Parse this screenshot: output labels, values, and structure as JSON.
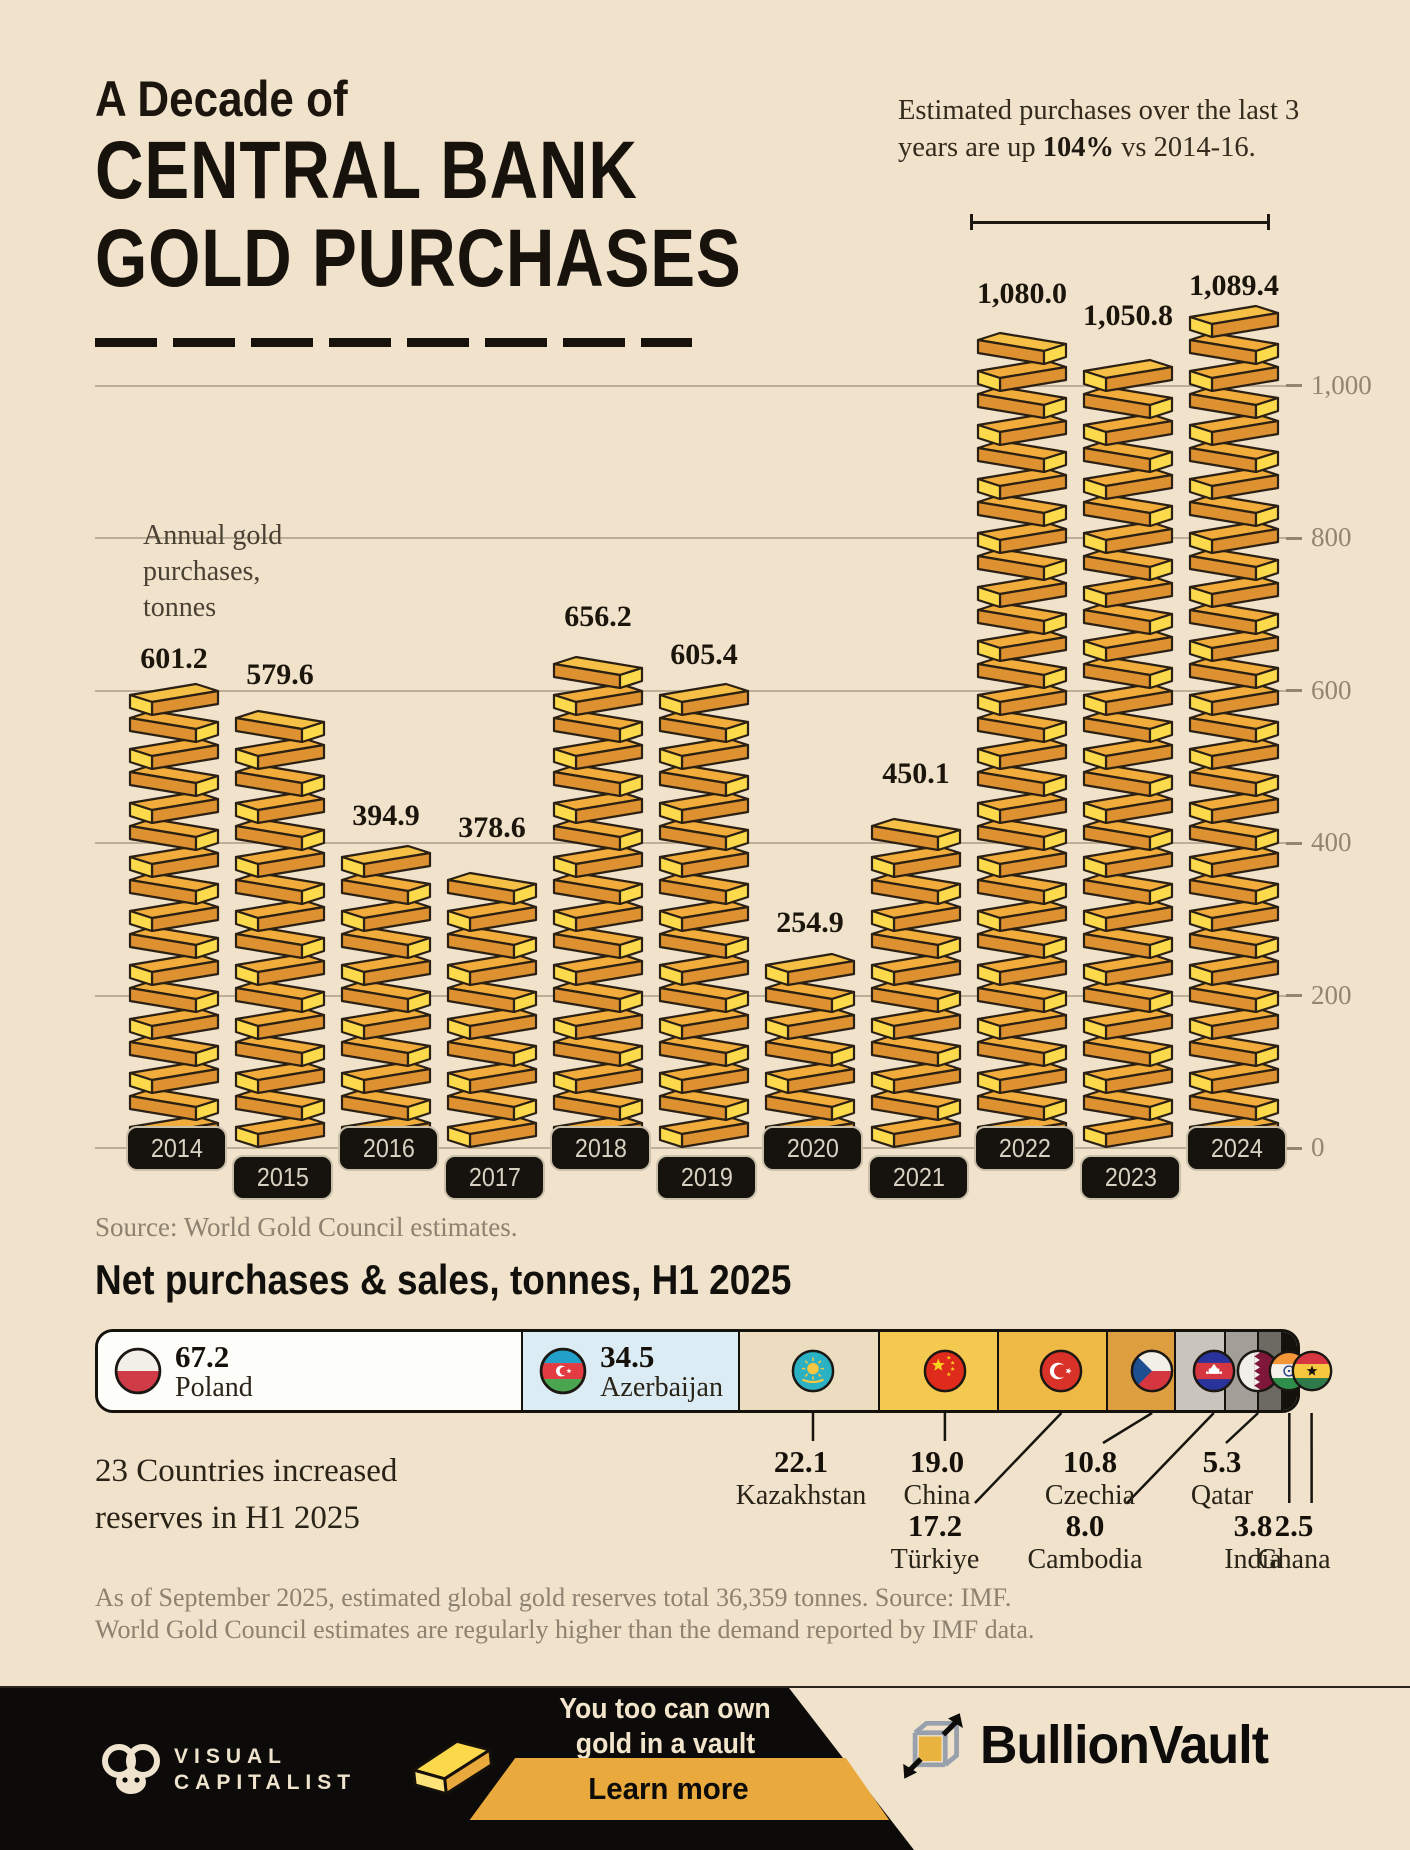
{
  "header": {
    "title_line1": "A Decade of",
    "title_line2": "CENTRAL BANK",
    "title_line3": "GOLD PURCHASES"
  },
  "annotation": {
    "before": "Estimated purchases over the last 3 years are up ",
    "bold": "104%",
    "after": " vs 2014-16."
  },
  "axis_note_lines": [
    "Annual gold",
    "purchases,",
    "tonnes"
  ],
  "chart_data": {
    "type": "bar",
    "title": "A Decade of Central Bank Gold Purchases",
    "ylabel": "Annual gold purchases, tonnes",
    "xlabel": "",
    "categories": [
      "2014",
      "2015",
      "2016",
      "2017",
      "2018",
      "2019",
      "2020",
      "2021",
      "2022",
      "2023",
      "2024"
    ],
    "values": [
      601.2,
      579.6,
      394.9,
      378.6,
      656.2,
      605.4,
      254.9,
      450.1,
      1080.0,
      1050.8,
      1089.4
    ],
    "value_labels": [
      "601.2",
      "579.6",
      "394.9",
      "378.6",
      "656.2",
      "605.4",
      "254.9",
      "450.1",
      "1,080.0",
      "1,050.8",
      "1,089.4"
    ],
    "ylim": [
      0,
      1150
    ],
    "grid": true,
    "legend": false,
    "yticks": {
      "labels": [
        "1,000",
        "800",
        "600",
        "400",
        "200",
        "0"
      ],
      "values": [
        1000,
        800,
        600,
        400,
        200,
        0
      ]
    },
    "bracket_years": [
      "2022",
      "2023",
      "2024"
    ],
    "source": "Source: World Gold Council estimates."
  },
  "h1_2025": {
    "heading": "Net purchases & sales, tonnes, H1 2025",
    "note_lines": [
      "23 Countries increased",
      "reserves in H1 2025"
    ],
    "countries": [
      {
        "name": "Poland",
        "value_label": "67.2",
        "value": 67.2,
        "color": "#fdfdfa",
        "flag": "poland-flag",
        "inline": true
      },
      {
        "name": "Azerbaijan",
        "value_label": "34.5",
        "value": 34.5,
        "color": "#dcecf4",
        "flag": "azerbaijan-flag",
        "inline": true
      },
      {
        "name": "Kazakhstan",
        "value_label": "22.1",
        "value": 22.1,
        "color": "#ecdcc0",
        "flag": "kazakhstan-flag",
        "row": 1
      },
      {
        "name": "China",
        "value_label": "19.0",
        "value": 19.0,
        "color": "#f3c94f",
        "flag": "china-flag",
        "row": 1
      },
      {
        "name": "Türkiye",
        "value_label": "17.2",
        "value": 17.2,
        "color": "#eeb945",
        "flag": "turkiye-flag",
        "row": 2
      },
      {
        "name": "Czechia",
        "value_label": "10.8",
        "value": 10.8,
        "color": "#dd9e40",
        "flag": "czechia-flag",
        "row": 1
      },
      {
        "name": "Cambodia",
        "value_label": "8.0",
        "value": 8.0,
        "color": "#c9c5bd",
        "flag": "cambodia-flag",
        "row": 2
      },
      {
        "name": "Qatar",
        "value_label": "5.3",
        "value": 5.3,
        "color": "#a39f98",
        "flag": "qatar-flag",
        "row": 1
      },
      {
        "name": "India",
        "value_label": "3.8",
        "value": 3.8,
        "color": "#6d6a64",
        "flag": "india-flag",
        "row": 2
      },
      {
        "name": "Ghana",
        "value_label": "2.5",
        "value": 2.5,
        "color": "#14110d",
        "flag": "ghana-flag",
        "row": 2
      }
    ],
    "footnote_lines": [
      "As of September 2025, estimated global gold reserves total 36,359 tonnes. Source: IMF.",
      "World Gold Council estimates are regularly higher than the demand reported by IMF data."
    ]
  },
  "footer": {
    "visual_capitalist_line1": "VISUAL",
    "visual_capitalist_line2": "CAPITALIST",
    "cta_line1": "You too can own",
    "cta_line2": "gold in a vault",
    "cta_button": "Learn more",
    "brand": "BullionVault"
  },
  "colors": {
    "background": "#f0e2cb",
    "gold_front": "#de9130",
    "gold_top": "#f2ac3b",
    "gold_end": "#fcda4b",
    "accent_band": "#e9a93c",
    "pill": "#16120d",
    "grid": "#bcae97",
    "axis_text": "#93866f"
  }
}
